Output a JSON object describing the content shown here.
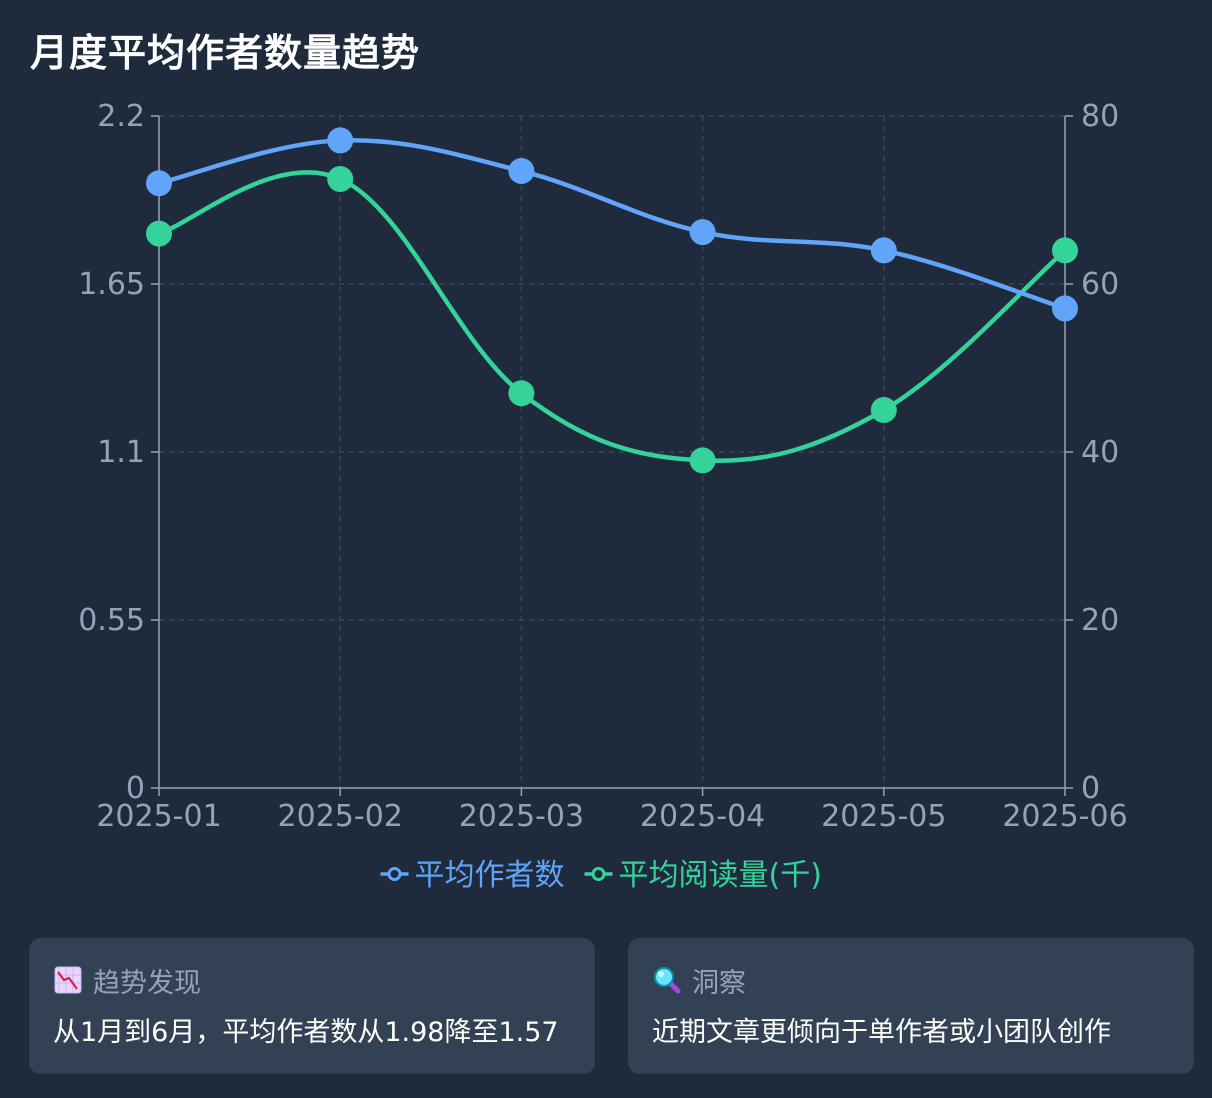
{
  "title": "月度平均作者数量趋势",
  "colors": {
    "background": "#1f2a3c",
    "card": "#334155",
    "series_authors": "#60a5fa",
    "series_reads": "#34d399",
    "axis": "#94a3b8",
    "grid": "#3b475a"
  },
  "chart_data": {
    "type": "line",
    "categories": [
      "2025-01",
      "2025-02",
      "2025-03",
      "2025-04",
      "2025-05",
      "2025-06"
    ],
    "series": [
      {
        "name": "平均作者数",
        "axis": "left",
        "values": [
          1.98,
          2.12,
          2.02,
          1.82,
          1.76,
          1.57
        ]
      },
      {
        "name": "平均阅读量(千)",
        "axis": "right",
        "values": [
          66,
          72.5,
          47,
          39,
          45,
          64
        ]
      }
    ],
    "y_left": {
      "min": 0,
      "max": 2.2,
      "ticks": [
        "0",
        "0.55",
        "1.1",
        "1.65",
        "2.2"
      ]
    },
    "y_right": {
      "min": 0,
      "max": 80,
      "ticks": [
        "0",
        "20",
        "40",
        "60",
        "80"
      ]
    },
    "grid": true,
    "smooth": true,
    "legend_position": "bottom-center"
  },
  "cards": [
    {
      "icon": "chart-decreasing-icon",
      "heading": "趋势发现",
      "text": "从1月到6月，平均作者数从1.98降至1.57"
    },
    {
      "icon": "magnifier-icon",
      "heading": "洞察",
      "text": "近期文章更倾向于单作者或小团队创作"
    }
  ]
}
